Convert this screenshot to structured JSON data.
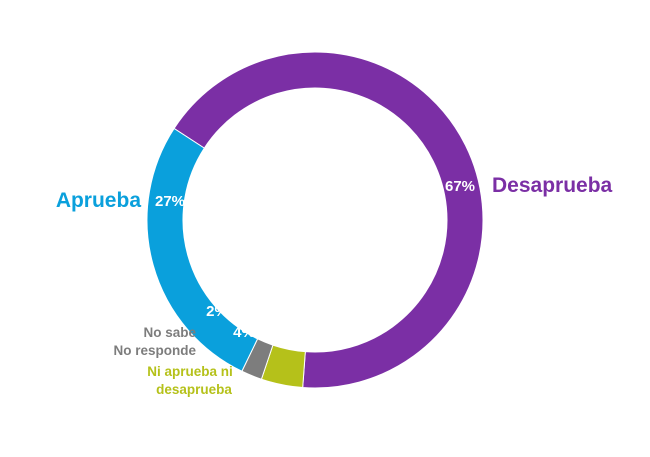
{
  "chart_data": {
    "type": "pie",
    "donut": true,
    "title": "",
    "slices": [
      {
        "label": "Desaprueba",
        "value": 67,
        "display": "67%",
        "color": "#7b2fa5"
      },
      {
        "label": "Ni aprueba ni desaprueba",
        "label_lines": [
          "Ni aprueba ni",
          "desaprueba"
        ],
        "value": 4,
        "display": "4%",
        "color": "#b5c11a"
      },
      {
        "label": "No sabe No responde",
        "label_lines": [
          "No sabe",
          "No responde"
        ],
        "value": 2,
        "display": "2%",
        "color": "#7d7d7d"
      },
      {
        "label": "Aprueba",
        "value": 27,
        "display": "27%",
        "color": "#0aa0dc"
      }
    ],
    "legend": "none"
  }
}
